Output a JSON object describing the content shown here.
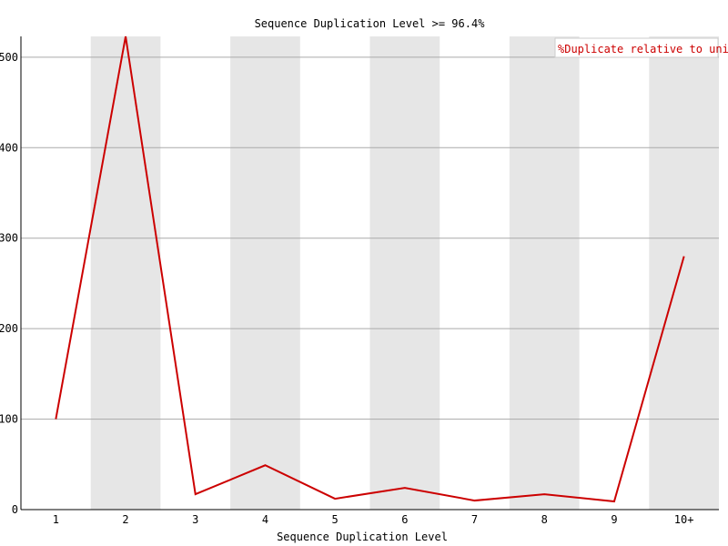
{
  "chart_data": {
    "type": "line",
    "title": "Sequence Duplication Level >= 96.4%",
    "xlabel": "Sequence Duplication Level",
    "ylabel": "",
    "categories": [
      "1",
      "2",
      "3",
      "4",
      "5",
      "6",
      "7",
      "8",
      "9",
      "10+"
    ],
    "series": [
      {
        "name": "%Duplicate relative to unique",
        "values": [
          100,
          523,
          17,
          49,
          12,
          24,
          10,
          17,
          9,
          280
        ],
        "color": "#cc0000"
      }
    ],
    "ylim": [
      0,
      523
    ],
    "yticks": [
      0,
      100,
      200,
      300,
      400,
      500
    ],
    "grid": true,
    "alternating_bands": true,
    "band_color": "#e6e6e6",
    "legend_position": "top-right"
  }
}
